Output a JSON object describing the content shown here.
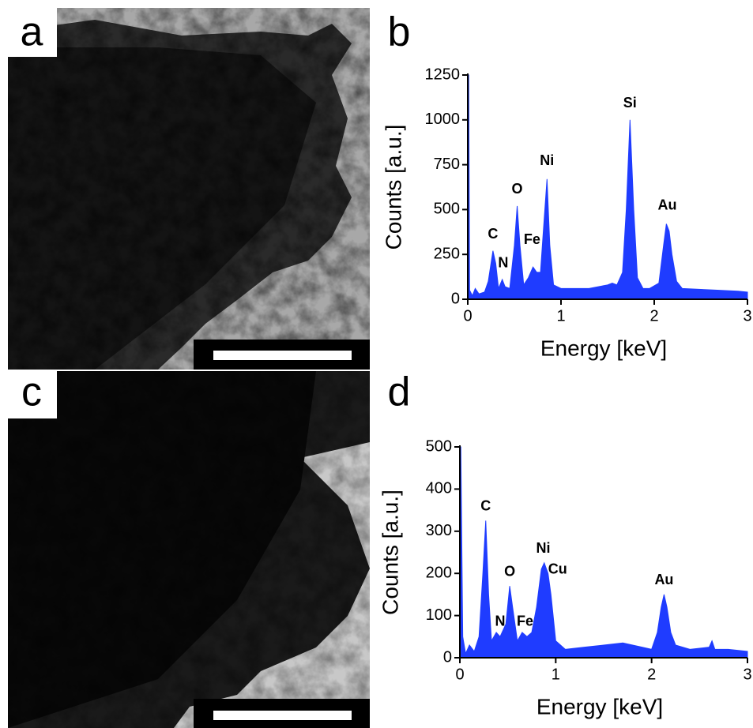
{
  "panel_labels": [
    "a",
    "b",
    "c",
    "d"
  ],
  "chart_data": [
    {
      "type": "area",
      "x_label": "Energy [keV]",
      "y_label": "Counts [a.u.]",
      "color": "#1f3cff",
      "xlim": [
        0,
        3
      ],
      "ylim": [
        0,
        1250
      ],
      "xticks": [
        0,
        1,
        2,
        3
      ],
      "yticks": [
        0,
        250,
        500,
        750,
        1000,
        1250
      ],
      "x": [
        0,
        0.01,
        0.02,
        0.05,
        0.08,
        0.12,
        0.18,
        0.22,
        0.27,
        0.3,
        0.33,
        0.37,
        0.4,
        0.45,
        0.5,
        0.53,
        0.56,
        0.6,
        0.65,
        0.7,
        0.74,
        0.78,
        0.82,
        0.85,
        0.88,
        0.92,
        1.0,
        1.1,
        1.2,
        1.3,
        1.4,
        1.5,
        1.55,
        1.6,
        1.66,
        1.7,
        1.74,
        1.78,
        1.82,
        1.88,
        1.95,
        2.05,
        2.1,
        2.13,
        2.16,
        2.19,
        2.24,
        2.3,
        2.5,
        2.7,
        2.9,
        3.0
      ],
      "values": [
        1250,
        1250,
        50,
        20,
        60,
        30,
        40,
        100,
        270,
        200,
        60,
        110,
        70,
        60,
        300,
        520,
        300,
        80,
        120,
        180,
        150,
        150,
        450,
        670,
        300,
        80,
        60,
        60,
        60,
        60,
        70,
        80,
        90,
        80,
        150,
        500,
        1000,
        500,
        120,
        60,
        60,
        90,
        300,
        420,
        380,
        250,
        100,
        60,
        55,
        50,
        45,
        40
      ],
      "annotations": [
        {
          "text": "C",
          "x": 0.27,
          "y": 360
        },
        {
          "text": "N",
          "x": 0.38,
          "y": 200
        },
        {
          "text": "O",
          "x": 0.53,
          "y": 610
        },
        {
          "text": "Fe",
          "x": 0.69,
          "y": 330
        },
        {
          "text": "Ni",
          "x": 0.85,
          "y": 770
        },
        {
          "text": "Si",
          "x": 1.74,
          "y": 1090
        },
        {
          "text": "Au",
          "x": 2.14,
          "y": 520
        }
      ]
    },
    {
      "type": "area",
      "x_label": "Energy [keV]",
      "y_label": "Counts [a.u.]",
      "color": "#1f3cff",
      "xlim": [
        0,
        3
      ],
      "ylim": [
        0,
        500
      ],
      "xticks": [
        0,
        1,
        2,
        3
      ],
      "yticks": [
        0,
        100,
        200,
        300,
        400,
        500
      ],
      "x": [
        0,
        0.01,
        0.03,
        0.06,
        0.1,
        0.15,
        0.2,
        0.24,
        0.27,
        0.3,
        0.33,
        0.38,
        0.42,
        0.48,
        0.52,
        0.55,
        0.6,
        0.65,
        0.7,
        0.75,
        0.8,
        0.85,
        0.88,
        0.92,
        0.95,
        1.0,
        1.1,
        1.3,
        1.5,
        1.7,
        1.9,
        2.0,
        2.06,
        2.1,
        2.13,
        2.16,
        2.2,
        2.25,
        2.4,
        2.6,
        2.63,
        2.66,
        2.8,
        3.0
      ],
      "values": [
        500,
        500,
        50,
        10,
        30,
        15,
        50,
        200,
        325,
        150,
        40,
        60,
        50,
        80,
        170,
        120,
        40,
        60,
        50,
        60,
        120,
        210,
        225,
        200,
        150,
        40,
        20,
        25,
        30,
        35,
        25,
        20,
        60,
        120,
        150,
        120,
        60,
        30,
        20,
        25,
        40,
        20,
        20,
        15
      ],
      "annotations": [
        {
          "text": "C",
          "x": 0.27,
          "y": 358
        },
        {
          "text": "N",
          "x": 0.42,
          "y": 85
        },
        {
          "text": "O",
          "x": 0.52,
          "y": 203
        },
        {
          "text": "Fe",
          "x": 0.68,
          "y": 85
        },
        {
          "text": "Ni",
          "x": 0.87,
          "y": 258
        },
        {
          "text": "Cu",
          "x": 1.02,
          "y": 208
        },
        {
          "text": "Au",
          "x": 2.13,
          "y": 183
        }
      ]
    }
  ]
}
